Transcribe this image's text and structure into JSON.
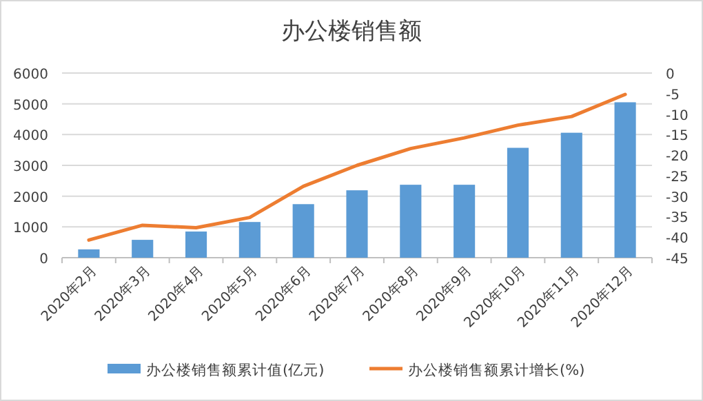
{
  "chart_data": {
    "type": "bar",
    "title": "办公楼销售额",
    "categories": [
      "2020年2月",
      "2020年3月",
      "2020年4月",
      "2020年5月",
      "2020年6月",
      "2020年7月",
      "2020年8月",
      "2020年9月",
      "2020年10月",
      "2020年11月",
      "2020年12月"
    ],
    "series": [
      {
        "name": "办公楼销售额累计值(亿元)",
        "color": "#5b9bd5",
        "values": [
          270,
          580,
          850,
          1160,
          1740,
          2190,
          2370,
          2370,
          3570,
          4060,
          5050
        ]
      },
      {
        "name": "办公楼销售额累计增长(%)",
        "type": "line",
        "axis": "y2",
        "color": "#ed7d31",
        "values": [
          -40.7,
          -37.1,
          -37.7,
          -35.2,
          -27.6,
          -22.5,
          -18.4,
          -15.8,
          -12.7,
          -10.6,
          -5.2
        ]
      }
    ],
    "ylim": [
      0,
      6000
    ],
    "yticks": [
      0,
      1000,
      2000,
      3000,
      4000,
      5000,
      6000
    ],
    "y2lim": [
      -45,
      0
    ],
    "y2ticks": [
      -45,
      -40,
      -35,
      -30,
      -25,
      -20,
      -15,
      -10,
      -5,
      0
    ],
    "grid": "y",
    "legend": "bottom"
  }
}
